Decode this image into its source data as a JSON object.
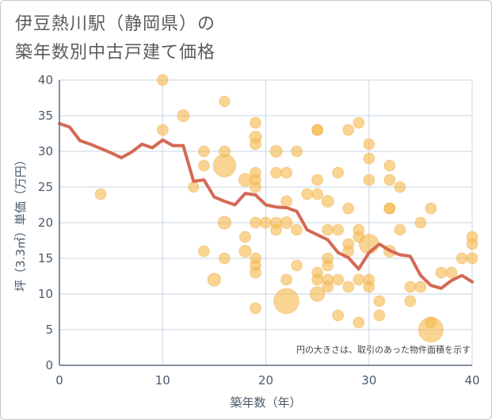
{
  "title_lines": [
    "伊豆熱川駅（静岡県）の",
    "築年数別中古戸建て価格"
  ],
  "chart_data": {
    "type": "scatter",
    "title": "伊豆熱川駅（静岡県）の築年数別中古戸建て価格",
    "xlabel": "築年数（年）",
    "ylabel": "坪（3.3㎡）単価（万円）",
    "xlim": [
      0,
      40
    ],
    "ylim": [
      0,
      40
    ],
    "xticks": [
      0,
      10,
      20,
      30,
      40
    ],
    "yticks": [
      0,
      5,
      10,
      15,
      20,
      25,
      30,
      35,
      40
    ],
    "grid": true,
    "annotation": "円の大きさは、取引のあった物件面積を示す",
    "colors": {
      "bubble": "#f5b94f",
      "bubble_stroke": "#eaa23a",
      "line": "#d46a55",
      "grid": "#c9d6e3",
      "axis": "#5a6d80"
    },
    "bubbles": [
      {
        "x": 4,
        "y": 24,
        "s": 1
      },
      {
        "x": 10,
        "y": 40,
        "s": 1
      },
      {
        "x": 10,
        "y": 33,
        "s": 1
      },
      {
        "x": 12,
        "y": 35,
        "s": 1.2
      },
      {
        "x": 13,
        "y": 25,
        "s": 0.9
      },
      {
        "x": 14,
        "y": 30,
        "s": 1
      },
      {
        "x": 14,
        "y": 28,
        "s": 1
      },
      {
        "x": 14,
        "y": 16,
        "s": 1
      },
      {
        "x": 15,
        "y": 12,
        "s": 1.4
      },
      {
        "x": 16,
        "y": 37,
        "s": 0.9
      },
      {
        "x": 16,
        "y": 28,
        "s": 4.2
      },
      {
        "x": 16,
        "y": 30,
        "s": 1
      },
      {
        "x": 16,
        "y": 20,
        "s": 1.4
      },
      {
        "x": 16,
        "y": 15,
        "s": 1
      },
      {
        "x": 18,
        "y": 26,
        "s": 1.4
      },
      {
        "x": 18,
        "y": 18,
        "s": 1
      },
      {
        "x": 18,
        "y": 16,
        "s": 1.2
      },
      {
        "x": 19,
        "y": 34,
        "s": 1
      },
      {
        "x": 19,
        "y": 32,
        "s": 1.2
      },
      {
        "x": 19,
        "y": 31,
        "s": 1
      },
      {
        "x": 19,
        "y": 27,
        "s": 1
      },
      {
        "x": 19,
        "y": 26,
        "s": 1
      },
      {
        "x": 19,
        "y": 25,
        "s": 1
      },
      {
        "x": 19,
        "y": 20,
        "s": 1
      },
      {
        "x": 19,
        "y": 15,
        "s": 1
      },
      {
        "x": 19,
        "y": 14,
        "s": 1
      },
      {
        "x": 19,
        "y": 13,
        "s": 1
      },
      {
        "x": 19,
        "y": 8,
        "s": 1
      },
      {
        "x": 20,
        "y": 20,
        "s": 1
      },
      {
        "x": 21,
        "y": 30,
        "s": 1.2
      },
      {
        "x": 21,
        "y": 27,
        "s": 1
      },
      {
        "x": 21,
        "y": 20,
        "s": 1
      },
      {
        "x": 21,
        "y": 19,
        "s": 1
      },
      {
        "x": 22,
        "y": 27,
        "s": 1
      },
      {
        "x": 22,
        "y": 23,
        "s": 1
      },
      {
        "x": 22,
        "y": 20,
        "s": 1.2
      },
      {
        "x": 22,
        "y": 12,
        "s": 1
      },
      {
        "x": 22,
        "y": 9,
        "s": 5.2
      },
      {
        "x": 23,
        "y": 30,
        "s": 1
      },
      {
        "x": 23,
        "y": 19,
        "s": 1
      },
      {
        "x": 23,
        "y": 14,
        "s": 1
      },
      {
        "x": 24,
        "y": 24,
        "s": 1
      },
      {
        "x": 25,
        "y": 33,
        "s": 1
      },
      {
        "x": 25,
        "y": 33,
        "s": 1
      },
      {
        "x": 25,
        "y": 26,
        "s": 1
      },
      {
        "x": 25,
        "y": 24,
        "s": 1
      },
      {
        "x": 25,
        "y": 13,
        "s": 1
      },
      {
        "x": 25,
        "y": 12,
        "s": 1
      },
      {
        "x": 25,
        "y": 10,
        "s": 1.8
      },
      {
        "x": 26,
        "y": 23,
        "s": 1.2
      },
      {
        "x": 26,
        "y": 19,
        "s": 1
      },
      {
        "x": 26,
        "y": 15,
        "s": 1
      },
      {
        "x": 26,
        "y": 14,
        "s": 1
      },
      {
        "x": 26,
        "y": 12,
        "s": 1
      },
      {
        "x": 26,
        "y": 11,
        "s": 1
      },
      {
        "x": 27,
        "y": 27,
        "s": 1
      },
      {
        "x": 27,
        "y": 19,
        "s": 1
      },
      {
        "x": 27,
        "y": 12,
        "s": 1
      },
      {
        "x": 27,
        "y": 7,
        "s": 1
      },
      {
        "x": 28,
        "y": 33,
        "s": 1
      },
      {
        "x": 28,
        "y": 22,
        "s": 1
      },
      {
        "x": 28,
        "y": 17,
        "s": 1
      },
      {
        "x": 28,
        "y": 16,
        "s": 1
      },
      {
        "x": 28,
        "y": 11,
        "s": 1
      },
      {
        "x": 29,
        "y": 34,
        "s": 1
      },
      {
        "x": 29,
        "y": 19,
        "s": 1
      },
      {
        "x": 29,
        "y": 18,
        "s": 1
      },
      {
        "x": 29,
        "y": 12,
        "s": 1
      },
      {
        "x": 29,
        "y": 6,
        "s": 1
      },
      {
        "x": 30,
        "y": 31,
        "s": 1
      },
      {
        "x": 30,
        "y": 29,
        "s": 1
      },
      {
        "x": 30,
        "y": 26,
        "s": 1
      },
      {
        "x": 30,
        "y": 17,
        "s": 3.2
      },
      {
        "x": 30,
        "y": 12,
        "s": 1
      },
      {
        "x": 30,
        "y": 11,
        "s": 1
      },
      {
        "x": 31,
        "y": 9,
        "s": 1
      },
      {
        "x": 31,
        "y": 7,
        "s": 1
      },
      {
        "x": 32,
        "y": 28,
        "s": 1
      },
      {
        "x": 32,
        "y": 26,
        "s": 1
      },
      {
        "x": 32,
        "y": 22,
        "s": 1
      },
      {
        "x": 32,
        "y": 22,
        "s": 1
      },
      {
        "x": 32,
        "y": 16,
        "s": 1.2
      },
      {
        "x": 33,
        "y": 25,
        "s": 1
      },
      {
        "x": 33,
        "y": 19,
        "s": 1
      },
      {
        "x": 34,
        "y": 11,
        "s": 1
      },
      {
        "x": 34,
        "y": 9,
        "s": 1
      },
      {
        "x": 35,
        "y": 20,
        "s": 1
      },
      {
        "x": 35,
        "y": 11,
        "s": 1
      },
      {
        "x": 36,
        "y": 22,
        "s": 1
      },
      {
        "x": 36,
        "y": 6,
        "s": 1
      },
      {
        "x": 36,
        "y": 5,
        "s": 5.0
      },
      {
        "x": 37,
        "y": 13,
        "s": 1
      },
      {
        "x": 38,
        "y": 13,
        "s": 1
      },
      {
        "x": 39,
        "y": 15,
        "s": 1
      },
      {
        "x": 40,
        "y": 18,
        "s": 1
      },
      {
        "x": 40,
        "y": 17,
        "s": 1
      },
      {
        "x": 40,
        "y": 15,
        "s": 1
      }
    ],
    "trend": {
      "x": [
        0,
        1,
        2,
        3,
        4,
        5,
        6,
        7,
        8,
        9,
        10,
        11,
        12,
        13,
        14,
        15,
        16,
        17,
        18,
        19,
        20,
        21,
        22,
        23,
        24,
        25,
        26,
        27,
        28,
        29,
        30,
        31,
        32,
        33,
        34,
        35,
        36,
        37,
        38,
        39,
        40
      ],
      "y": [
        33.9,
        33.4,
        31.5,
        31.0,
        30.4,
        29.8,
        29.1,
        29.9,
        31.0,
        30.5,
        31.6,
        30.8,
        30.8,
        25.8,
        26.0,
        23.6,
        23.0,
        22.5,
        24.1,
        23.9,
        22.5,
        22.2,
        22.1,
        21.6,
        19.0,
        18.3,
        17.6,
        15.8,
        15.1,
        13.5,
        15.8,
        17.0,
        16.1,
        15.5,
        15.3,
        12.6,
        11.2,
        10.8,
        11.9,
        12.6,
        11.7
      ]
    }
  }
}
